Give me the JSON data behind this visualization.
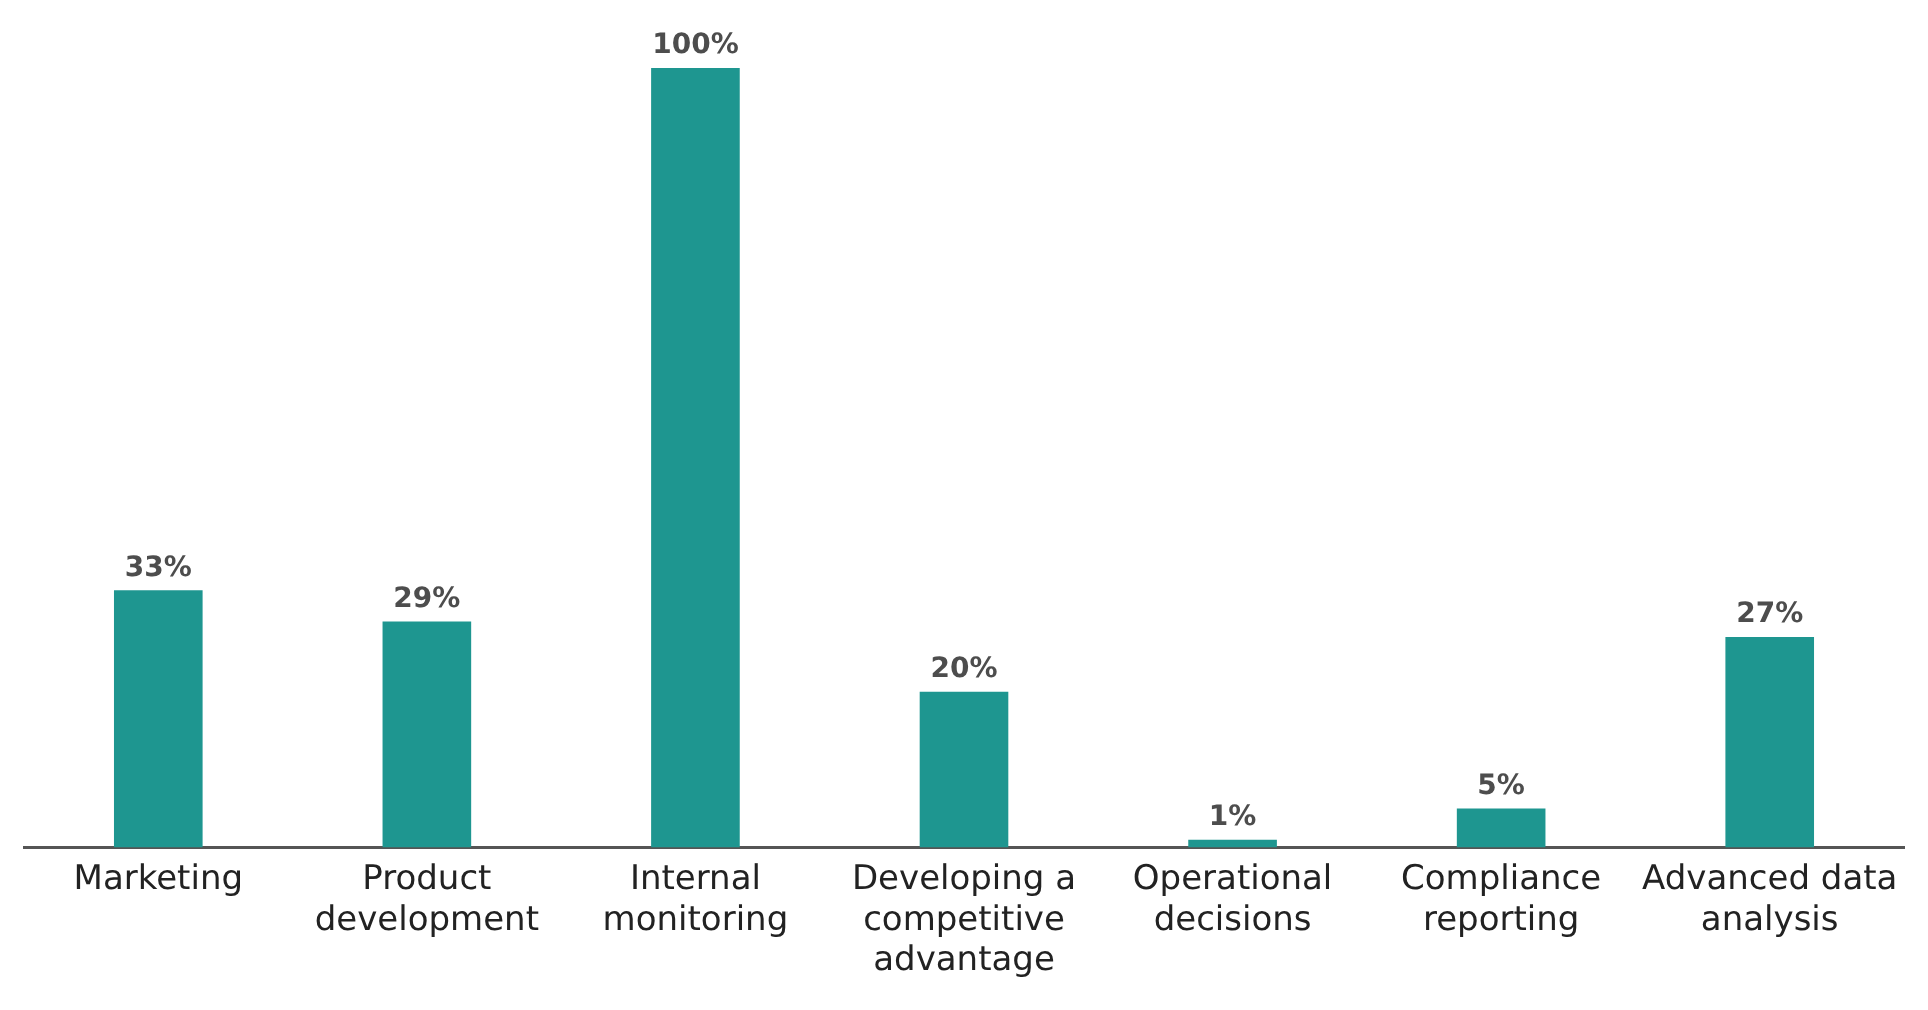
{
  "chart_data": {
    "type": "bar",
    "categories": [
      "Marketing",
      "Product development",
      "Internal monitoring",
      "Developing a competitive advantage",
      "Operational decisions",
      "Compliance reporting",
      "Advanced data analysis"
    ],
    "values": [
      33,
      29,
      100,
      20,
      1,
      5,
      27
    ],
    "value_labels": [
      "33%",
      "29%",
      "100%",
      "20%",
      "1%",
      "5%",
      "27%"
    ],
    "color": "#1e9690",
    "grid": false,
    "legend": false,
    "tick_labels": "x"
  }
}
